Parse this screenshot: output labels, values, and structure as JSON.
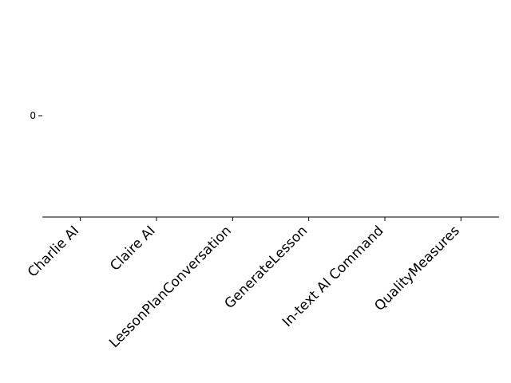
{
  "chart_data": {
    "type": "bar",
    "categories": [
      "Charlie AI",
      "Claire AI",
      "LessonPlanConversation",
      "GenerateLesson",
      "In-text AI Command",
      "QualityMeasures"
    ],
    "yticks": [
      0
    ],
    "ytick_labels": [
      "0"
    ],
    "grid": false,
    "axes": {
      "left_spine": false,
      "top_spine": false,
      "right_spine": false,
      "bottom_spine": true
    },
    "xtick_rotation_deg": 45
  }
}
